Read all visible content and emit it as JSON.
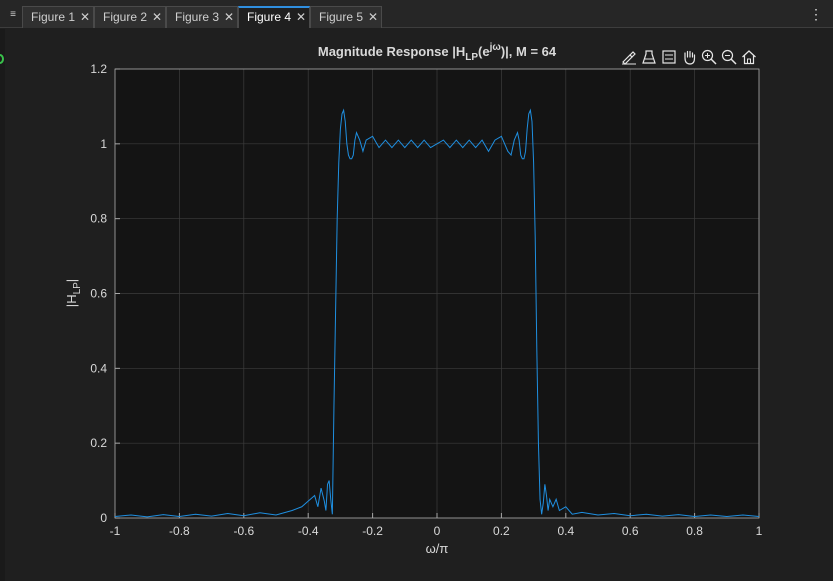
{
  "tabs": [
    {
      "label": "Figure 1"
    },
    {
      "label": "Figure 2"
    },
    {
      "label": "Figure 3"
    },
    {
      "label": "Figure 4"
    },
    {
      "label": "Figure 5"
    }
  ],
  "active_tab_index": 3,
  "colors": {
    "line": "#1f8fe0",
    "axes_bg": "#141414",
    "grid": "#3c3c3c",
    "text": "#d9d9d9"
  },
  "toolbar": [
    "brush-icon",
    "data-tips-icon",
    "legend-icon",
    "pan-icon",
    "zoom-in-icon",
    "zoom-out-icon",
    "home-icon"
  ],
  "chart_data": {
    "type": "line",
    "title_parts": {
      "pre": "Magnitude Response |H",
      "sub": "LP",
      "mid": "(e",
      "sup": "jω",
      "post": ")|, M = 64"
    },
    "xlabel": "ω/π",
    "ylabel_parts": {
      "pre": "|H",
      "sub": "LP",
      "post": "|"
    },
    "xlim": [
      -1,
      1
    ],
    "ylim": [
      0,
      1.2
    ],
    "xticks": [
      -1,
      -0.8,
      -0.6,
      -0.4,
      -0.2,
      0,
      0.2,
      0.4,
      0.6,
      0.8,
      1
    ],
    "xtick_labels": [
      "-1",
      "-0.8",
      "-0.6",
      "-0.4",
      "-0.2",
      "0",
      "0.2",
      "0.4",
      "0.6",
      "0.8",
      "1"
    ],
    "yticks": [
      0,
      0.2,
      0.4,
      0.6,
      0.8,
      1,
      1.2
    ],
    "ytick_labels": [
      "0",
      "0.2",
      "0.4",
      "0.6",
      "0.8",
      "1",
      "1.2"
    ],
    "grid": true,
    "series": [
      {
        "x": [
          -1,
          -0.95,
          -0.9,
          -0.85,
          -0.8,
          -0.75,
          -0.7,
          -0.65,
          -0.6,
          -0.55,
          -0.5,
          -0.45,
          -0.42,
          -0.4,
          -0.38,
          -0.37,
          -0.36,
          -0.35,
          -0.345,
          -0.34,
          -0.335,
          -0.33,
          -0.325,
          -0.32,
          -0.315,
          -0.31,
          -0.305,
          -0.3,
          -0.295,
          -0.29,
          -0.285,
          -0.28,
          -0.275,
          -0.27,
          -0.265,
          -0.26,
          -0.255,
          -0.25,
          -0.24,
          -0.23,
          -0.22,
          -0.2,
          -0.18,
          -0.16,
          -0.14,
          -0.12,
          -0.1,
          -0.08,
          -0.06,
          -0.04,
          -0.02,
          0,
          0.02,
          0.04,
          0.06,
          0.08,
          0.1,
          0.12,
          0.14,
          0.16,
          0.18,
          0.2,
          0.22,
          0.23,
          0.24,
          0.25,
          0.255,
          0.26,
          0.265,
          0.27,
          0.275,
          0.28,
          0.285,
          0.29,
          0.295,
          0.3,
          0.305,
          0.31,
          0.315,
          0.32,
          0.325,
          0.33,
          0.335,
          0.34,
          0.345,
          0.35,
          0.36,
          0.37,
          0.38,
          0.4,
          0.42,
          0.45,
          0.5,
          0.55,
          0.6,
          0.65,
          0.7,
          0.75,
          0.8,
          0.85,
          0.9,
          0.95,
          1
        ],
        "y": [
          0.004,
          0.008,
          0.003,
          0.009,
          0.004,
          0.01,
          0.005,
          0.012,
          0.006,
          0.014,
          0.008,
          0.02,
          0.03,
          0.045,
          0.06,
          0.03,
          0.08,
          0.045,
          0.02,
          0.09,
          0.1,
          0.05,
          0.01,
          0.3,
          0.55,
          0.8,
          0.95,
          1.04,
          1.08,
          1.09,
          1.06,
          1.0,
          0.97,
          0.96,
          0.96,
          0.97,
          1.01,
          1.03,
          1.01,
          0.98,
          1.01,
          1.02,
          0.99,
          1.01,
          0.99,
          1.01,
          0.99,
          1.01,
          0.99,
          1.01,
          0.99,
          1.0,
          1.01,
          0.99,
          1.01,
          0.99,
          1.01,
          0.99,
          1.01,
          0.98,
          1.01,
          1.02,
          0.98,
          0.97,
          1.01,
          1.03,
          1.01,
          0.97,
          0.96,
          0.96,
          0.98,
          1.04,
          1.08,
          1.09,
          1.06,
          0.95,
          0.75,
          0.45,
          0.2,
          0.05,
          0.01,
          0.04,
          0.09,
          0.06,
          0.02,
          0.05,
          0.03,
          0.05,
          0.02,
          0.03,
          0.01,
          0.015,
          0.008,
          0.012,
          0.006,
          0.01,
          0.005,
          0.009,
          0.004,
          0.008,
          0.004,
          0.008,
          0.004
        ]
      }
    ]
  }
}
